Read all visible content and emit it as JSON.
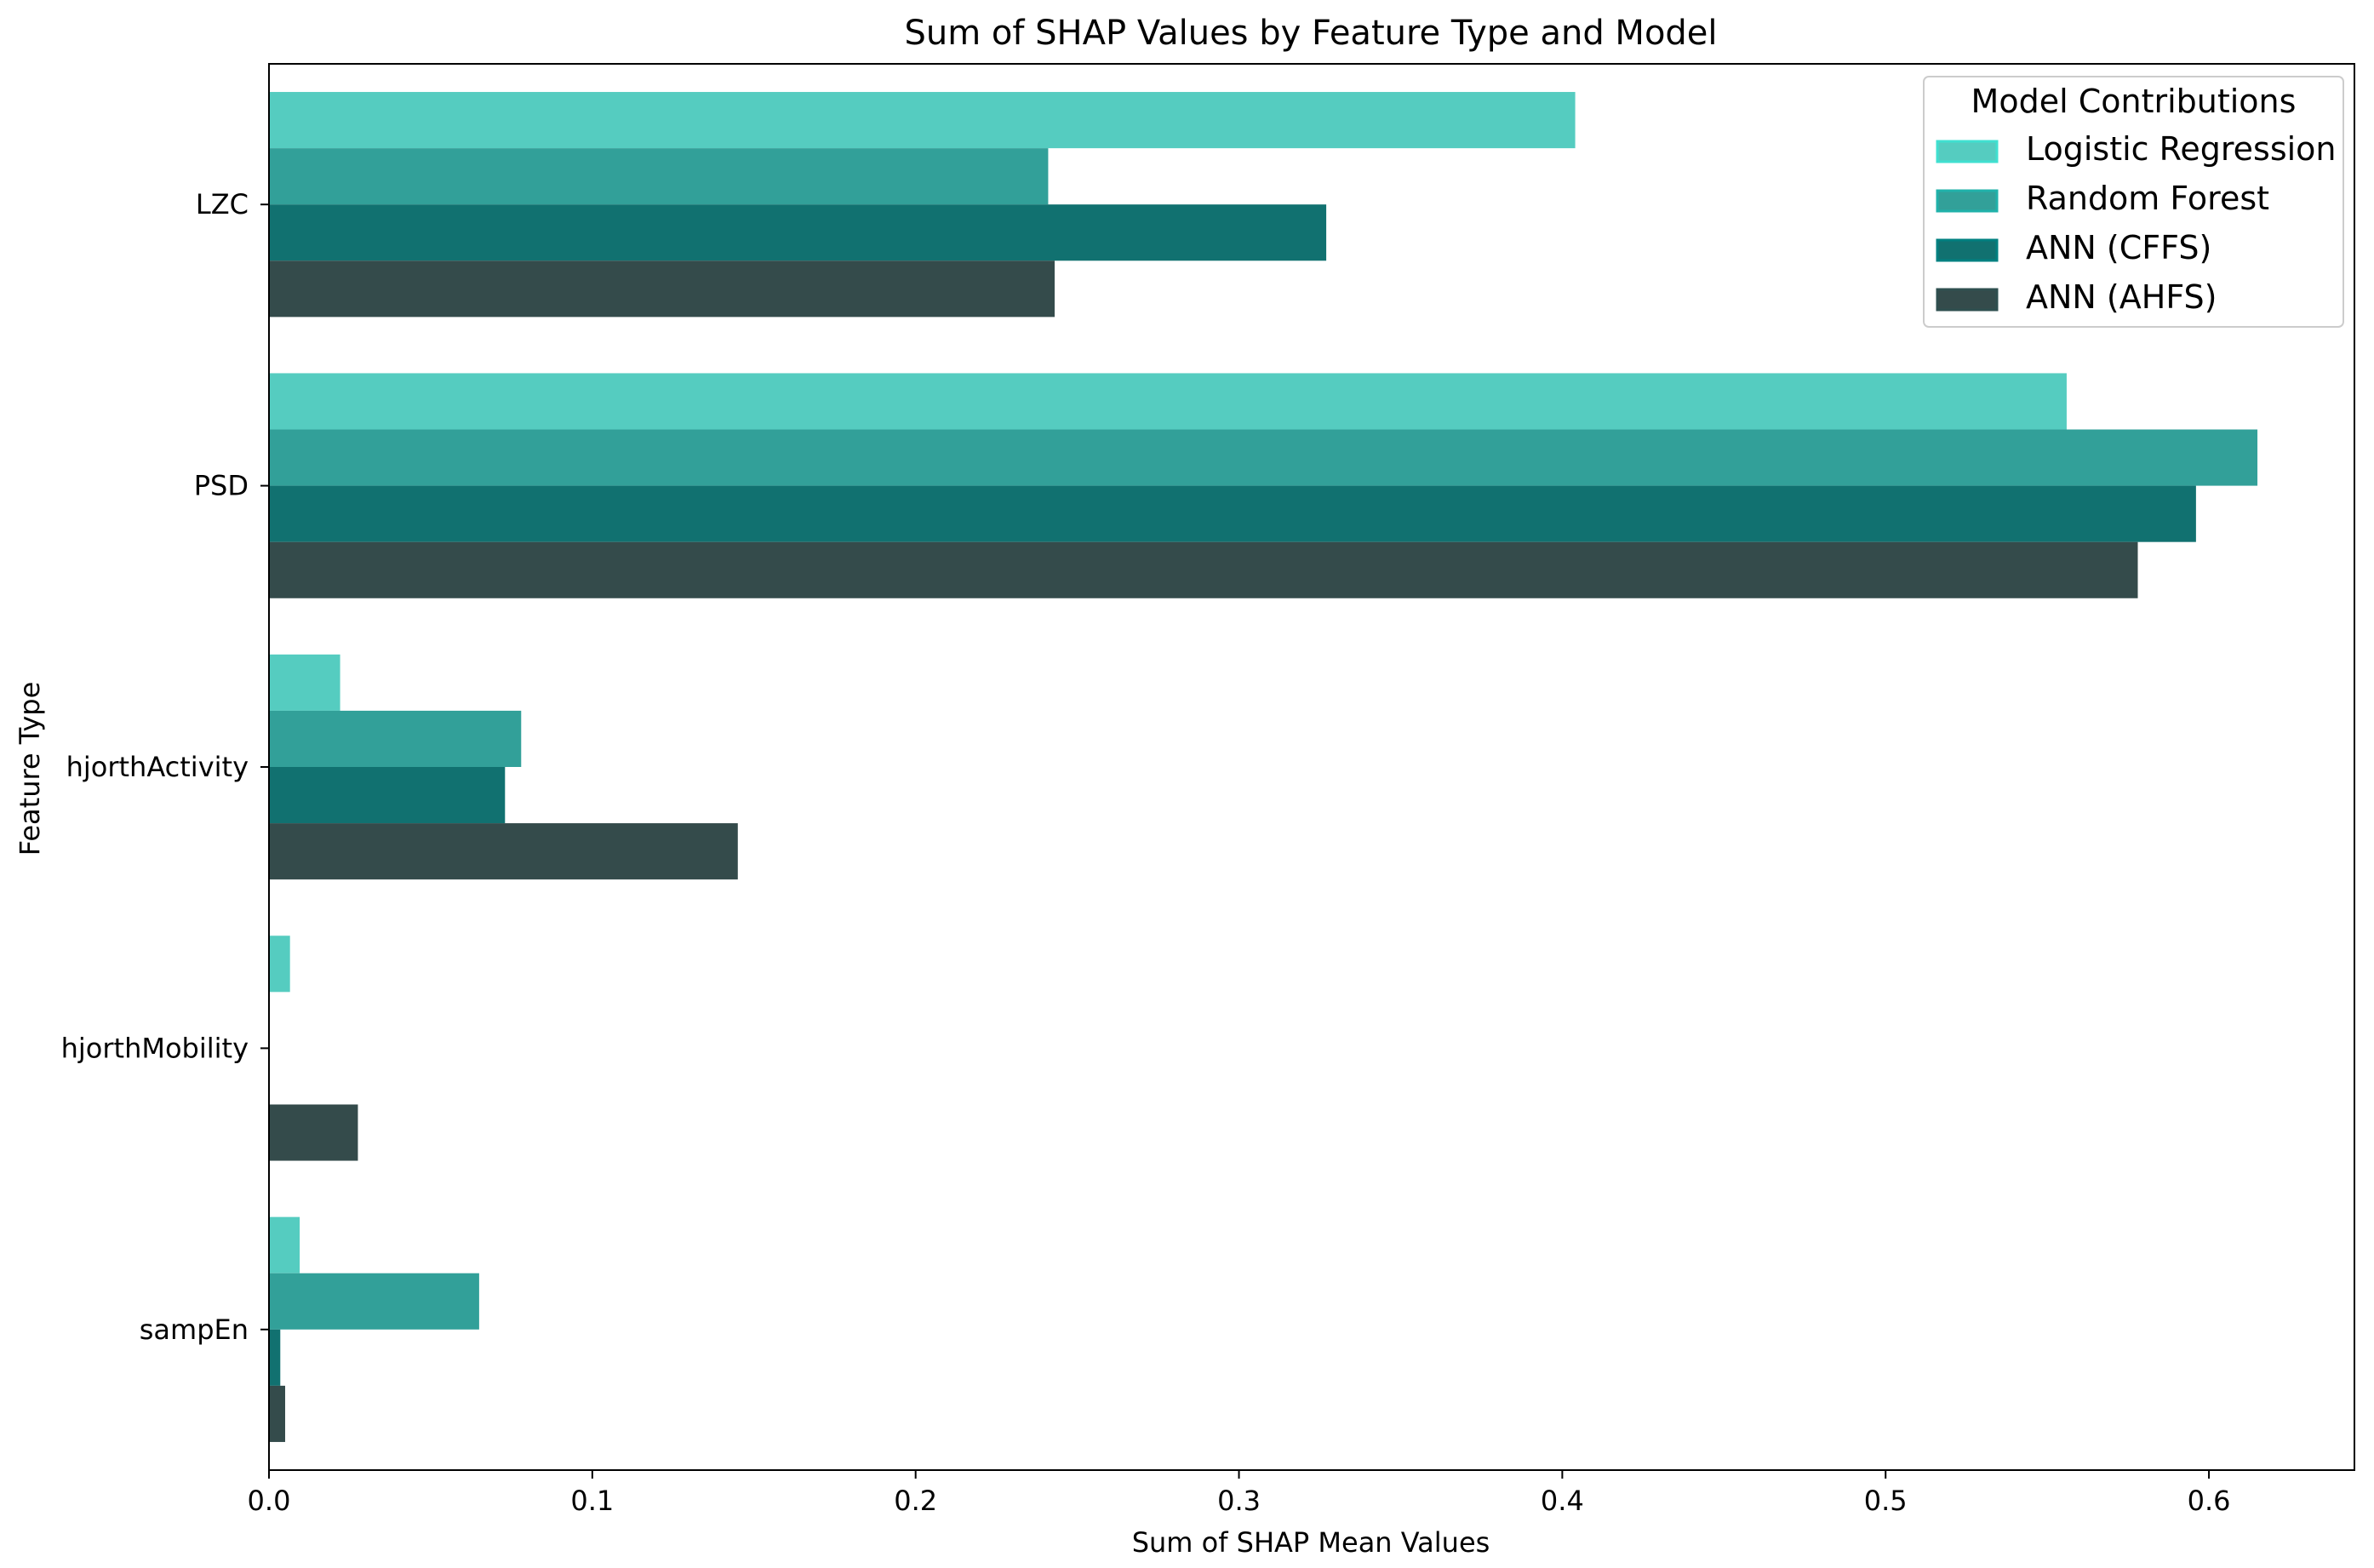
{
  "chart_data": {
    "type": "bar",
    "orientation": "horizontal",
    "title": "Sum of SHAP Values by Feature Type and Model",
    "xlabel": "Sum of SHAP Mean Values",
    "ylabel": "Feature Type",
    "xlim": [
      0,
      0.645
    ],
    "xticks": [
      "0.0",
      "0.1",
      "0.2",
      "0.3",
      "0.4",
      "0.5",
      "0.6"
    ],
    "grid": false,
    "categories": [
      "LZC",
      "PSD",
      "hjorthActivity",
      "hjorthMobility",
      "sampEn"
    ],
    "series": [
      {
        "name": "Logistic Regression",
        "color": "#55ccc0",
        "values": [
          0.404,
          0.556,
          0.022,
          0.0065,
          0.0095
        ]
      },
      {
        "name": "Random Forest",
        "color": "#32a099",
        "values": [
          0.241,
          0.615,
          0.078,
          0.0,
          0.065
        ]
      },
      {
        "name": "ANN (CFFS)",
        "color": "#117170",
        "values": [
          0.327,
          0.596,
          0.073,
          0.0,
          0.0035
        ]
      },
      {
        "name": "ANN (AHFS)",
        "color": "#344b4b",
        "values": [
          0.243,
          0.578,
          0.145,
          0.0275,
          0.005
        ]
      }
    ],
    "legend": {
      "title": "Model Contributions",
      "position": "top-right",
      "swatch_colors": [
        "#40e0d0",
        "#20b2aa",
        "#008080",
        "#2f4f4f"
      ]
    }
  }
}
